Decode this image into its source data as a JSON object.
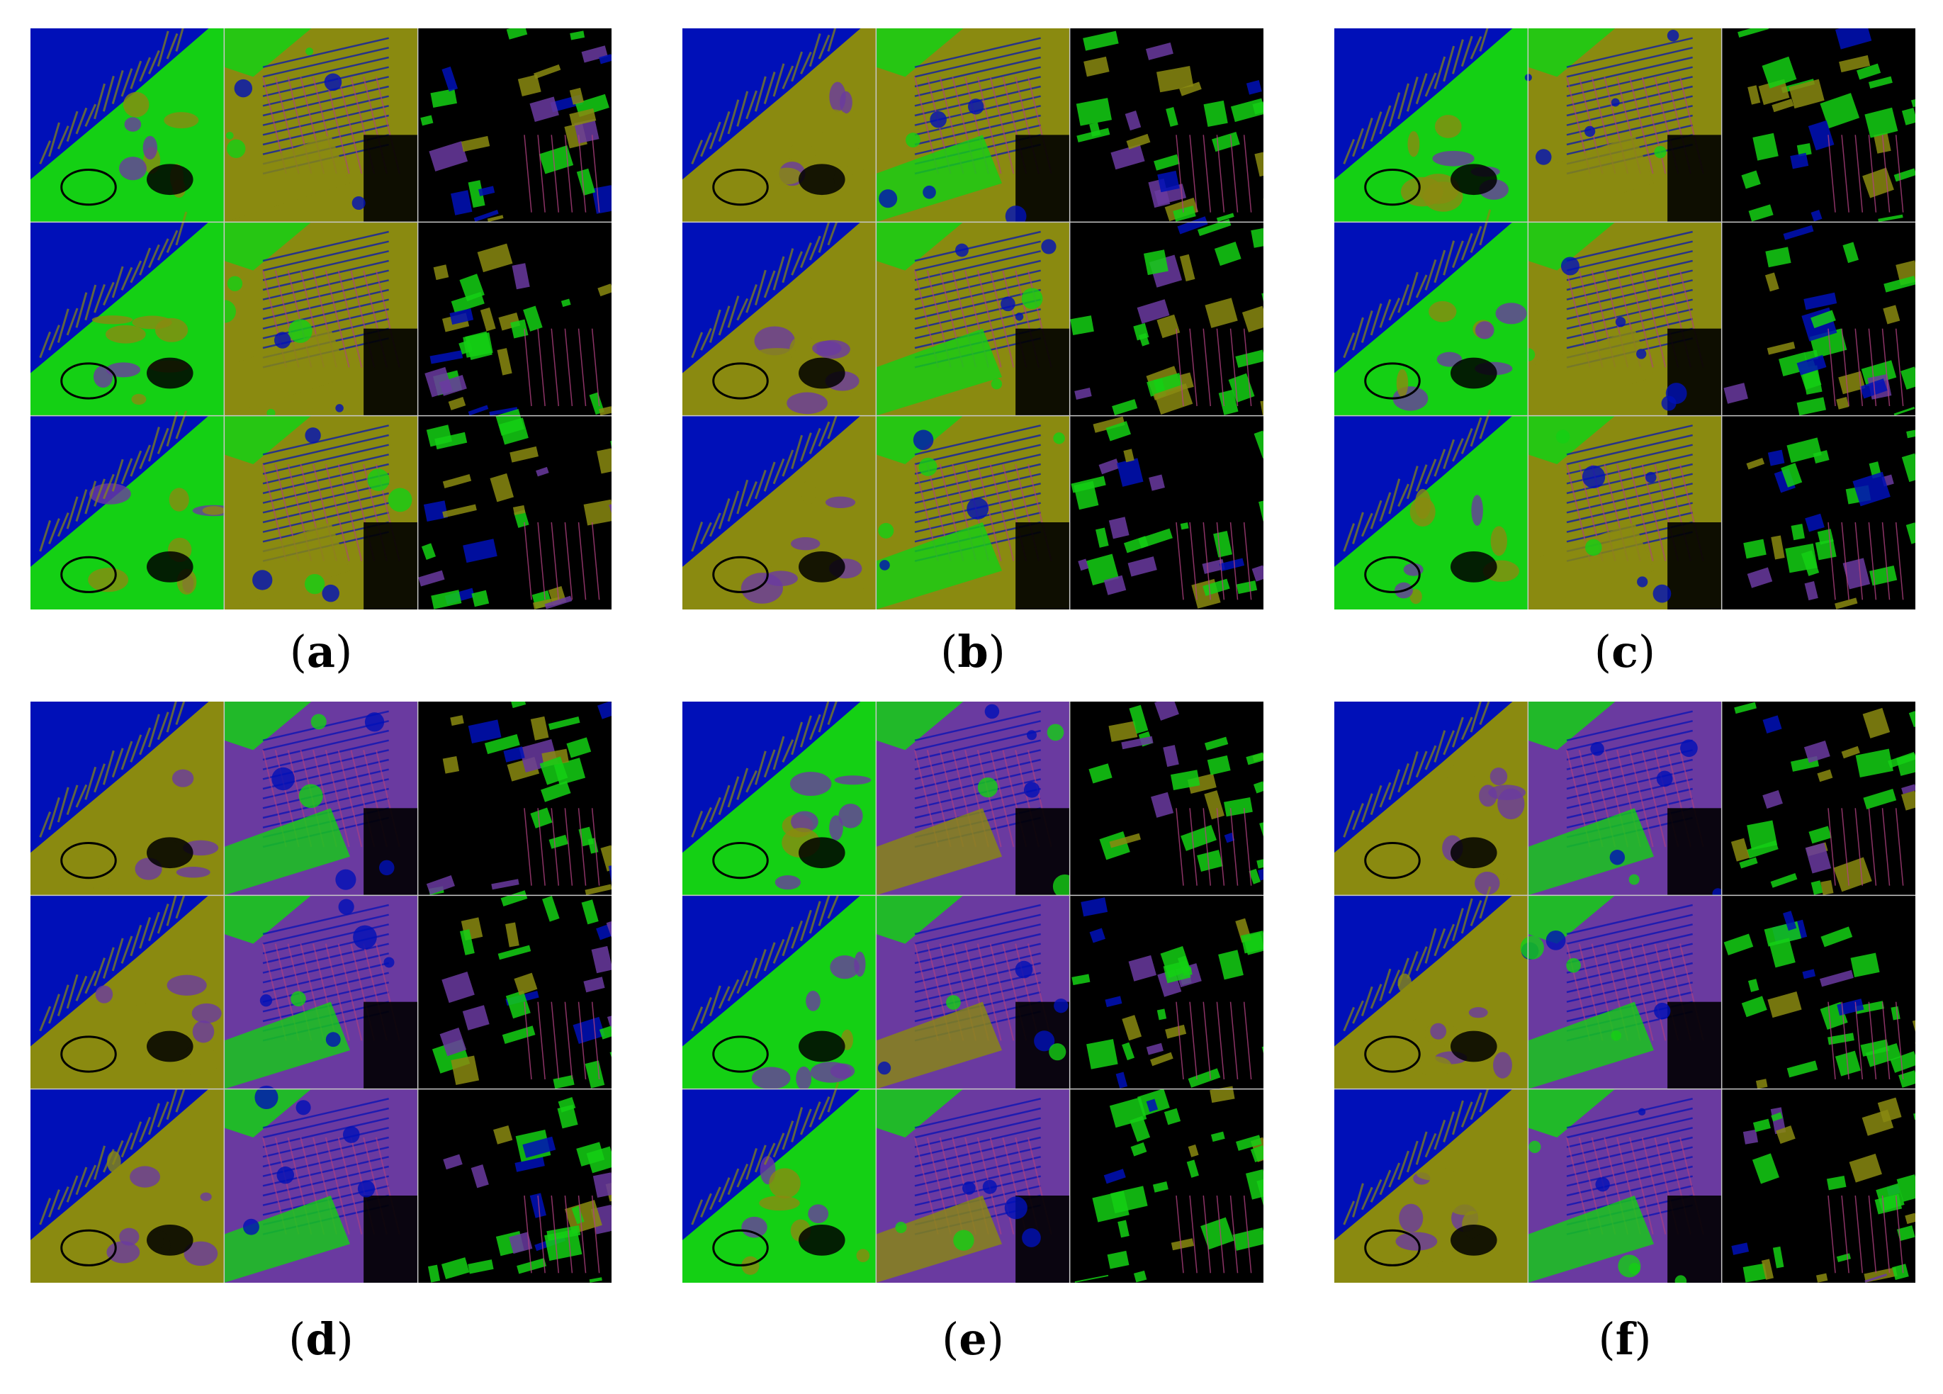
{
  "figure": {
    "panels": [
      {
        "id": "a",
        "label": "a"
      },
      {
        "id": "b",
        "label": "b"
      },
      {
        "id": "c",
        "label": "c"
      },
      {
        "id": "d",
        "label": "d"
      },
      {
        "id": "e",
        "label": "e"
      },
      {
        "id": "f",
        "label": "f"
      }
    ]
  },
  "colors": {
    "water": "#0010b8",
    "vegetation": "#14d014",
    "olive": "#8a8a10",
    "purple": "#6a3aa0",
    "magenta": "#b04080",
    "dark": "#000000",
    "grid_line": "#c8c8c8"
  }
}
